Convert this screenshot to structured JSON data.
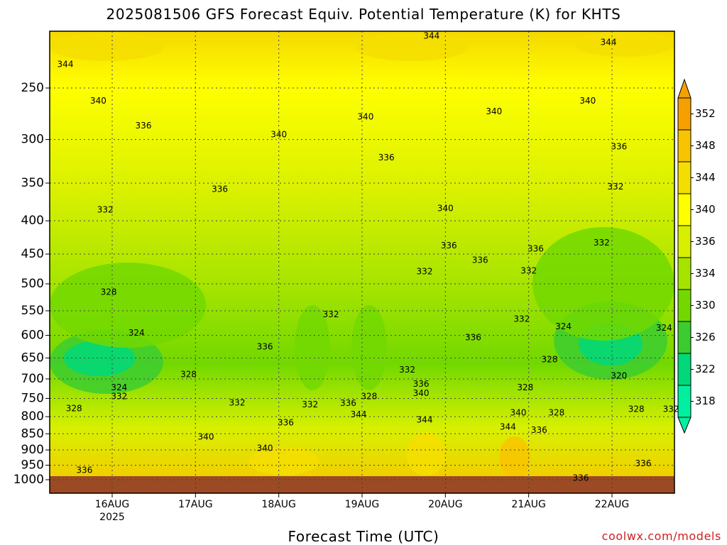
{
  "chart_data": {
    "type": "heatmap",
    "title": "2025081506 GFS Forecast Equiv. Potential Temperature (K) for KHTS",
    "xlabel": "Forecast Time (UTC)",
    "ylabel": "",
    "x_ticks": [
      {
        "label": "16AUG",
        "sublabel": "2025",
        "hours": 18
      },
      {
        "label": "17AUG",
        "sublabel": "",
        "hours": 42
      },
      {
        "label": "18AUG",
        "sublabel": "",
        "hours": 66
      },
      {
        "label": "19AUG",
        "sublabel": "",
        "hours": 90
      },
      {
        "label": "20AUG",
        "sublabel": "",
        "hours": 114
      },
      {
        "label": "21AUG",
        "sublabel": "",
        "hours": 138
      },
      {
        "label": "22AUG",
        "sublabel": "",
        "hours": 162
      }
    ],
    "xlim_hours": [
      0,
      180
    ],
    "y_ticks": [
      250,
      300,
      350,
      400,
      450,
      500,
      550,
      600,
      650,
      700,
      750,
      800,
      850,
      900,
      950,
      1000
    ],
    "ylim": [
      1000,
      200
    ],
    "y_scale": "log-pressure",
    "grid": true,
    "colorbar": {
      "labels": [
        "352",
        "348",
        "344",
        "340",
        "336",
        "334",
        "330",
        "326",
        "322",
        "318"
      ],
      "levels": [
        352,
        348,
        344,
        340,
        336,
        334,
        330,
        326,
        322,
        318
      ],
      "colors": [
        "#f6a000",
        "#f8c400",
        "#f4de00",
        "#ffff00",
        "#d8f000",
        "#a6e400",
        "#72d800",
        "#3ccc30",
        "#00d87a",
        "#00f0a0"
      ],
      "placement": "right"
    },
    "background_color": "#bff000",
    "ground_color": "#9b4a23",
    "contour_labels": [
      {
        "text": "344",
        "hours": 4.5,
        "pressure": 230
      },
      {
        "text": "340",
        "hours": 14,
        "pressure": 262
      },
      {
        "text": "336",
        "hours": 27,
        "pressure": 286
      },
      {
        "text": "332",
        "hours": 16,
        "pressure": 385
      },
      {
        "text": "328",
        "hours": 17,
        "pressure": 515
      },
      {
        "text": "324",
        "hours": 25,
        "pressure": 595
      },
      {
        "text": "328",
        "hours": 40,
        "pressure": 690
      },
      {
        "text": "324",
        "hours": 20,
        "pressure": 722
      },
      {
        "text": "332",
        "hours": 20,
        "pressure": 745
      },
      {
        "text": "328",
        "hours": 7,
        "pressure": 778
      },
      {
        "text": "336",
        "hours": 10,
        "pressure": 968
      },
      {
        "text": "336",
        "hours": 49,
        "pressure": 358
      },
      {
        "text": "340",
        "hours": 66,
        "pressure": 295
      },
      {
        "text": "336",
        "hours": 62,
        "pressure": 625
      },
      {
        "text": "332",
        "hours": 54,
        "pressure": 762
      },
      {
        "text": "340",
        "hours": 45,
        "pressure": 860
      },
      {
        "text": "336",
        "hours": 68,
        "pressure": 818
      },
      {
        "text": "340",
        "hours": 62,
        "pressure": 895
      },
      {
        "text": "332",
        "hours": 81,
        "pressure": 558
      },
      {
        "text": "332",
        "hours": 75,
        "pressure": 767
      },
      {
        "text": "336",
        "hours": 86,
        "pressure": 763
      },
      {
        "text": "328",
        "hours": 92,
        "pressure": 745
      },
      {
        "text": "344",
        "hours": 89,
        "pressure": 795
      },
      {
        "text": "340",
        "hours": 91,
        "pressure": 277
      },
      {
        "text": "336",
        "hours": 97,
        "pressure": 320
      },
      {
        "text": "332",
        "hours": 103,
        "pressure": 678
      },
      {
        "text": "336",
        "hours": 107,
        "pressure": 713
      },
      {
        "text": "340",
        "hours": 107,
        "pressure": 737
      },
      {
        "text": "344",
        "hours": 108,
        "pressure": 810
      },
      {
        "text": "332",
        "hours": 108,
        "pressure": 479
      },
      {
        "text": "344",
        "hours": 110,
        "pressure": 208
      },
      {
        "text": "340",
        "hours": 114,
        "pressure": 383
      },
      {
        "text": "336",
        "hours": 115,
        "pressure": 437
      },
      {
        "text": "336",
        "hours": 124,
        "pressure": 460
      },
      {
        "text": "336",
        "hours": 122,
        "pressure": 605
      },
      {
        "text": "340",
        "hours": 128,
        "pressure": 272
      },
      {
        "text": "336",
        "hours": 140,
        "pressure": 442
      },
      {
        "text": "332",
        "hours": 138,
        "pressure": 478
      },
      {
        "text": "332",
        "hours": 136,
        "pressure": 567
      },
      {
        "text": "328",
        "hours": 137,
        "pressure": 722
      },
      {
        "text": "340",
        "hours": 135,
        "pressure": 790
      },
      {
        "text": "344",
        "hours": 132,
        "pressure": 830
      },
      {
        "text": "336",
        "hours": 141,
        "pressure": 840
      },
      {
        "text": "324",
        "hours": 148,
        "pressure": 582
      },
      {
        "text": "328",
        "hours": 144,
        "pressure": 654
      },
      {
        "text": "340",
        "hours": 155,
        "pressure": 262
      },
      {
        "text": "336",
        "hours": 164,
        "pressure": 308
      },
      {
        "text": "332",
        "hours": 163,
        "pressure": 355
      },
      {
        "text": "332",
        "hours": 159,
        "pressure": 433
      },
      {
        "text": "328",
        "hours": 146,
        "pressure": 790
      },
      {
        "text": "344",
        "hours": 161,
        "pressure": 213
      },
      {
        "text": "320",
        "hours": 164,
        "pressure": 693
      },
      {
        "text": "328",
        "hours": 169,
        "pressure": 780
      },
      {
        "text": "332",
        "hours": 179,
        "pressure": 780
      },
      {
        "text": "324",
        "hours": 177,
        "pressure": 585
      },
      {
        "text": "336",
        "hours": 171,
        "pressure": 945
      },
      {
        "text": "336",
        "hours": 153,
        "pressure": 995
      }
    ]
  },
  "branding": {
    "credit": "coolwx.com/models"
  }
}
